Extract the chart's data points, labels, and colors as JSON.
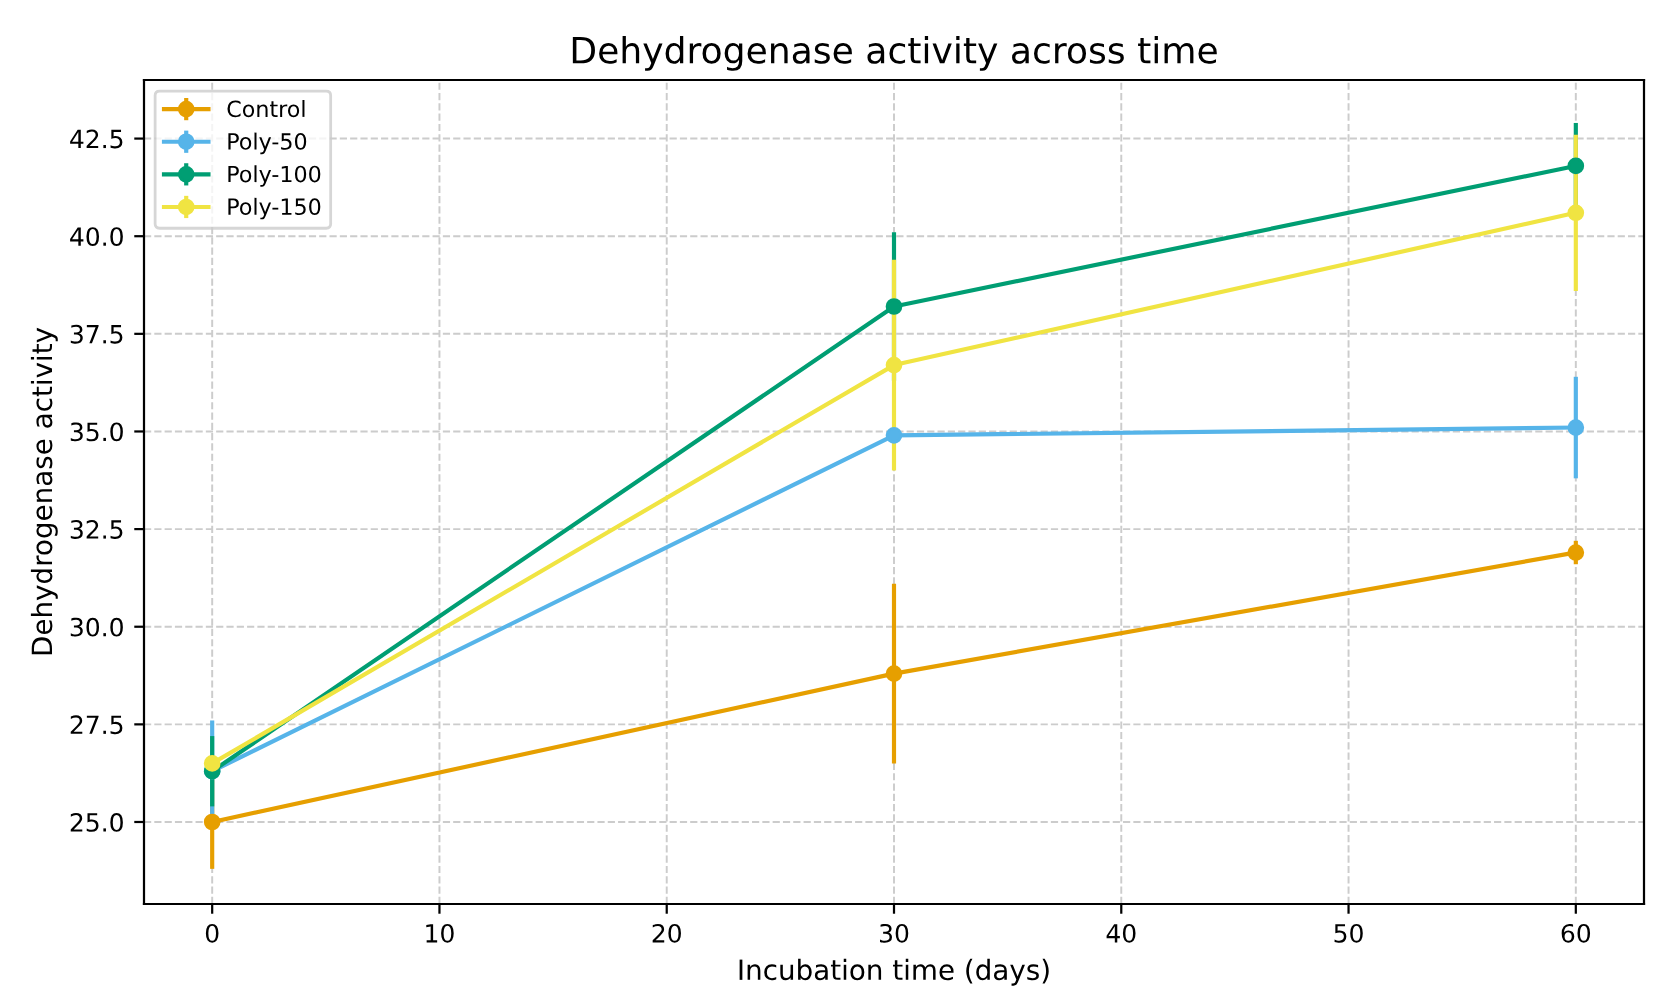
{
  "chart_data": {
    "type": "line",
    "title": "Dehydrogenase activity across time",
    "xlabel": "Incubation time (days)",
    "ylabel": "Dehydrogenase activity",
    "x": [
      0,
      30,
      60
    ],
    "series": [
      {
        "name": "Control",
        "color": "#e69f00",
        "values": [
          25.0,
          28.8,
          31.9
        ],
        "errors": [
          1.2,
          2.3,
          0.3
        ]
      },
      {
        "name": "Poly-50",
        "color": "#56b4e9",
        "values": [
          26.3,
          34.9,
          35.1
        ],
        "errors": [
          1.3,
          null,
          1.3
        ]
      },
      {
        "name": "Poly-100",
        "color": "#009e73",
        "values": [
          26.3,
          38.2,
          41.8
        ],
        "errors": [
          0.9,
          1.9,
          1.1
        ]
      },
      {
        "name": "Poly-150",
        "color": "#f0e442",
        "values": [
          26.5,
          36.7,
          40.6
        ],
        "errors": [
          null,
          2.7,
          2.0
        ]
      }
    ],
    "xlim": [
      -3,
      63
    ],
    "xticks": [
      0,
      10,
      20,
      30,
      40,
      50,
      60
    ],
    "ylim": [
      22.9,
      44.0
    ],
    "yticks": [
      {
        "value": 25,
        "label": "25.0"
      },
      {
        "value": 27.5,
        "label": "27.5"
      },
      {
        "value": 30,
        "label": "30.0"
      },
      {
        "value": 32.5,
        "label": "32.5"
      },
      {
        "value": 35,
        "label": "35.0"
      },
      {
        "value": 37.5,
        "label": "37.5"
      },
      {
        "value": 40,
        "label": "40.0"
      },
      {
        "value": 42.5,
        "label": "42.5"
      }
    ],
    "grid": true,
    "legend": "top left",
    "marker": "circle",
    "line_style": "solid"
  }
}
